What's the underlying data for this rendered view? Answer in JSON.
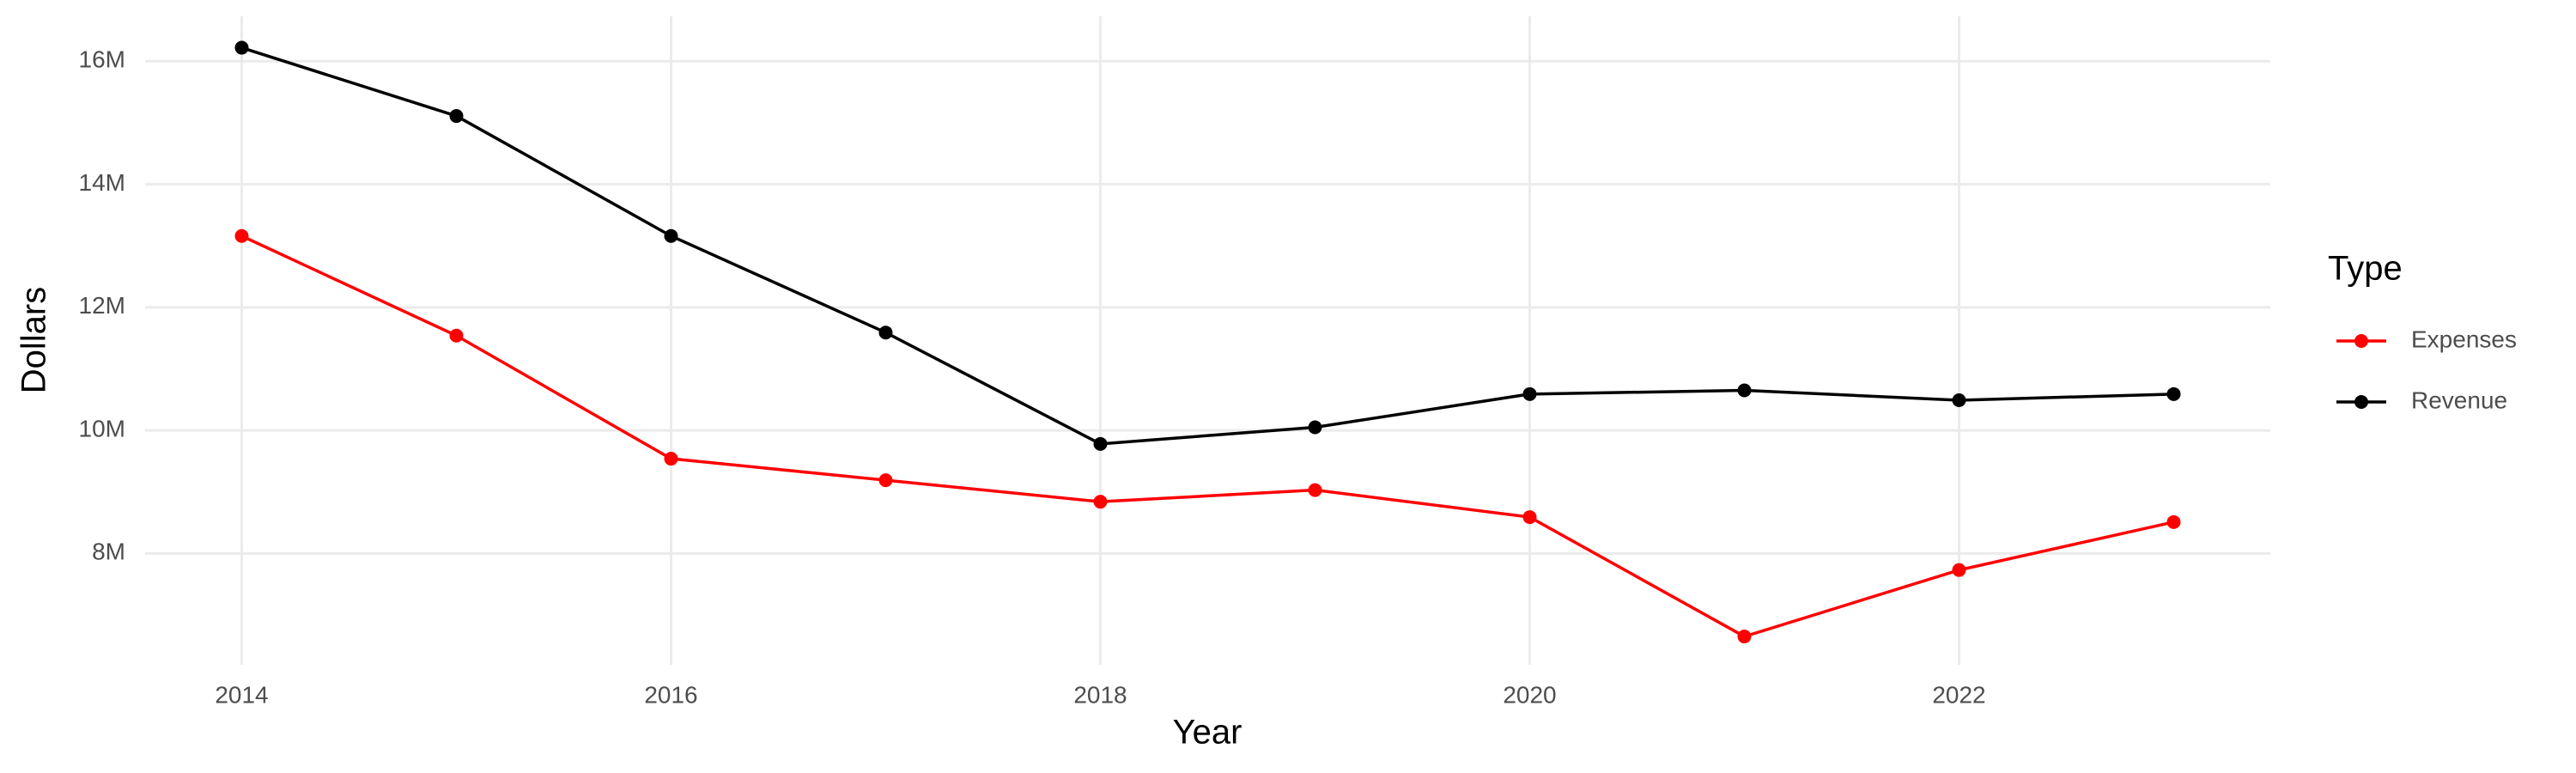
{
  "chart_data": {
    "type": "line",
    "x_label": "Year",
    "y_label": "Dollars",
    "x": [
      2014,
      2015,
      2016,
      2017,
      2018,
      2019,
      2020,
      2021,
      2022,
      2023
    ],
    "series": [
      {
        "name": "Expenses",
        "color": "#ff0000",
        "values": [
          13160000,
          11540000,
          9540000,
          9190000,
          8840000,
          9030000,
          8590000,
          6650000,
          7730000,
          8510000
        ]
      },
      {
        "name": "Revenue",
        "color": "#000000",
        "values": [
          16220000,
          15110000,
          13160000,
          11590000,
          9780000,
          10050000,
          10590000,
          10650000,
          10490000,
          10590000
        ]
      }
    ],
    "xlim": [
      2013.55,
      2023.45
    ],
    "xticks": [
      2014,
      2016,
      2018,
      2020,
      2022
    ],
    "ylim": [
      6190000,
      16730000
    ],
    "yticks": [
      {
        "value": 8000000,
        "label": "8M"
      },
      {
        "value": 10000000,
        "label": "10M"
      },
      {
        "value": 12000000,
        "label": "12M"
      },
      {
        "value": 14000000,
        "label": "14M"
      },
      {
        "value": 16000000,
        "label": "16M"
      }
    ],
    "grid": true,
    "legend_title": "Type",
    "legend_position": "right"
  }
}
